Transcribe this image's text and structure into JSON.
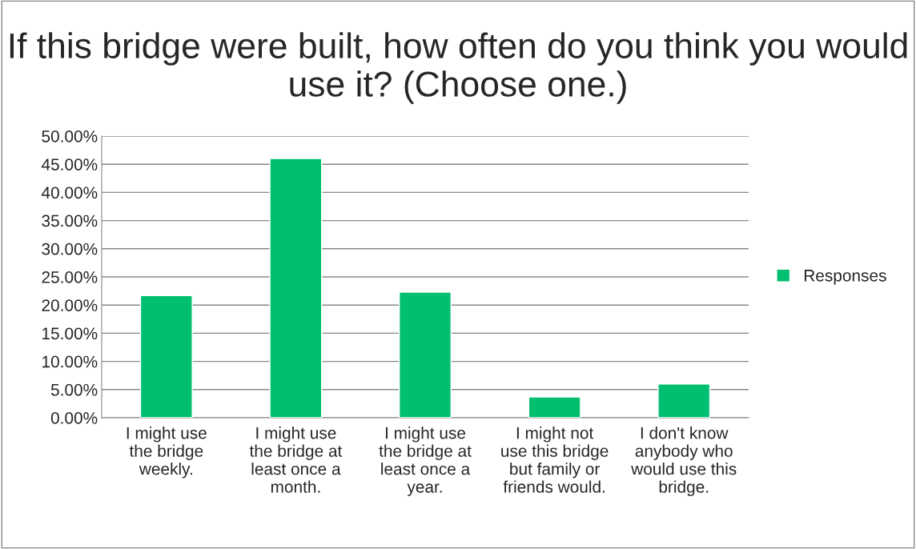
{
  "chart_data": {
    "type": "bar",
    "title": "If this bridge were built, how often do you think you would use it? (Choose one.)",
    "categories": [
      "I might use\nthe bridge\nweekly.",
      "I might use\nthe bridge at\nleast once a\nmonth.",
      "I might use\nthe bridge at\nleast once a\nyear.",
      "I might not\nuse this bridge\nbut family or\nfriends would.",
      "I don't know\nanybody who\nwould use this\nbridge."
    ],
    "series": [
      {
        "name": "Responses",
        "color": "#00bf6f",
        "values": [
          21.7,
          46.0,
          22.3,
          3.7,
          6.0
        ]
      }
    ],
    "ylim": [
      0,
      50
    ],
    "yticks": [
      {
        "value": 0,
        "label": "0.00%"
      },
      {
        "value": 5,
        "label": "5.00%"
      },
      {
        "value": 10,
        "label": "10.00%"
      },
      {
        "value": 15,
        "label": "15.00%"
      },
      {
        "value": 20,
        "label": "20.00%"
      },
      {
        "value": 25,
        "label": "25.00%"
      },
      {
        "value": 30,
        "label": "30.00%"
      },
      {
        "value": 35,
        "label": "35.00%"
      },
      {
        "value": 40,
        "label": "40.00%"
      },
      {
        "value": 45,
        "label": "45.00%"
      },
      {
        "value": 50,
        "label": "50.00%"
      }
    ],
    "grid": "y",
    "legend": "right"
  }
}
